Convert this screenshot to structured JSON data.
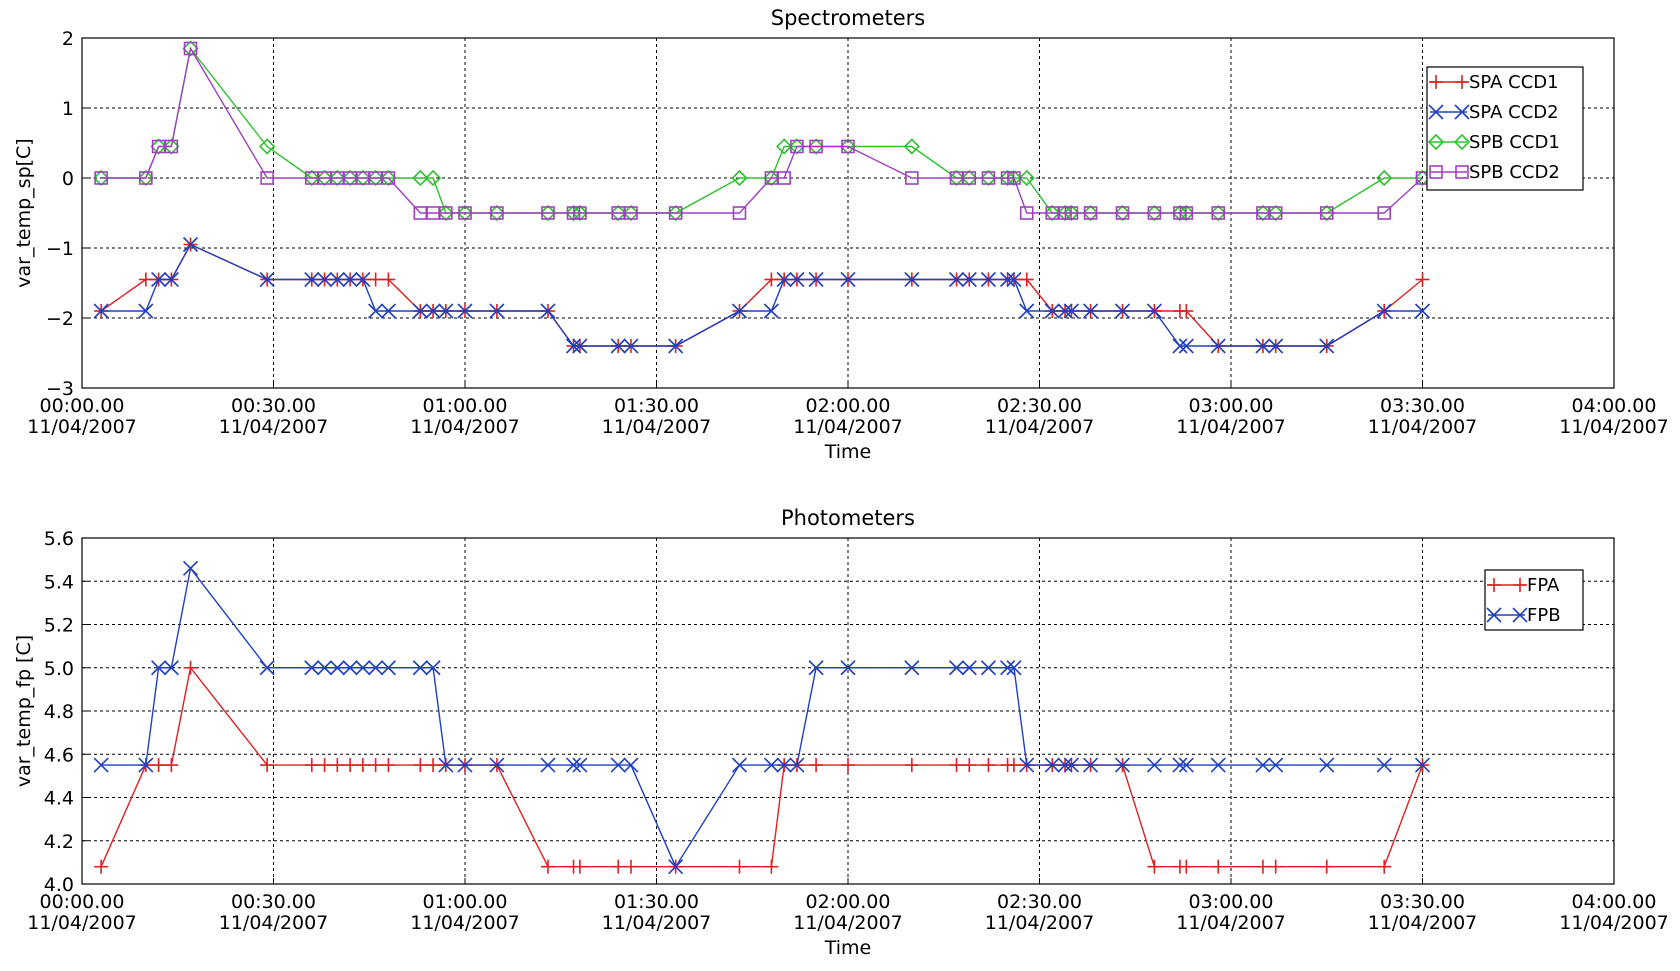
{
  "chart_data": [
    {
      "type": "line",
      "title": "Spectrometers",
      "xlabel": "Time",
      "ylabel": "var_temp_sp[C]",
      "xlim": [
        "2007-04-11 00:00:00",
        "2007-04-11 04:00:00"
      ],
      "ylim": [
        -3,
        2
      ],
      "x_tick_labels": [
        [
          "00:00.00",
          "11/04/2007"
        ],
        [
          "00:30.00",
          "11/04/2007"
        ],
        [
          "01:00.00",
          "11/04/2007"
        ],
        [
          "01:30.00",
          "11/04/2007"
        ],
        [
          "02:00.00",
          "11/04/2007"
        ],
        [
          "02:30.00",
          "11/04/2007"
        ],
        [
          "03:00.00",
          "11/04/2007"
        ],
        [
          "03:30.00",
          "11/04/2007"
        ],
        [
          "04:00.00",
          "11/04/2007"
        ]
      ],
      "y_ticks": [
        -3,
        -2,
        -1,
        0,
        1,
        2
      ],
      "y_tick_labels": [
        "−3",
        "−2",
        "−1",
        "0",
        "1",
        "2"
      ],
      "grid": true,
      "legend_position": "top-right",
      "series": [
        {
          "name": "SPA CCD1",
          "color": "#dd2020",
          "marker": "plus",
          "x": [
            "00:03",
            "00:10",
            "00:12",
            "00:14",
            "00:17",
            "00:29",
            "00:36",
            "00:38",
            "00:40",
            "00:42",
            "00:44",
            "00:46",
            "00:48",
            "00:53",
            "00:55",
            "00:57",
            "01:00",
            "01:05",
            "01:13",
            "01:17",
            "01:18",
            "01:24",
            "01:26",
            "01:33",
            "01:43",
            "01:48",
            "01:50",
            "01:52",
            "01:55",
            "02:00",
            "02:10",
            "02:17",
            "02:19",
            "02:22",
            "02:25",
            "02:26",
            "02:28",
            "02:32",
            "02:34",
            "02:35",
            "02:38",
            "02:43",
            "02:48",
            "02:52",
            "02:53",
            "02:58",
            "03:05",
            "03:07",
            "03:15",
            "03:24",
            "03:30"
          ],
          "values": [
            -1.9,
            -1.45,
            -1.45,
            -1.45,
            -0.95,
            -1.45,
            -1.45,
            -1.45,
            -1.45,
            -1.45,
            -1.45,
            -1.45,
            -1.45,
            -1.9,
            -1.9,
            -1.9,
            -1.9,
            -1.9,
            -1.9,
            -2.4,
            -2.4,
            -2.4,
            -2.4,
            -2.4,
            -1.9,
            -1.45,
            -1.45,
            -1.45,
            -1.45,
            -1.45,
            -1.45,
            -1.45,
            -1.45,
            -1.45,
            -1.45,
            -1.45,
            -1.45,
            -1.9,
            -1.9,
            -1.9,
            -1.9,
            -1.9,
            -1.9,
            -1.9,
            -1.9,
            -2.4,
            -2.4,
            -2.4,
            -2.4,
            -1.9,
            -1.45
          ]
        },
        {
          "name": "SPA CCD2",
          "color": "#2040c0",
          "marker": "x",
          "x": [
            "00:03",
            "00:10",
            "00:12",
            "00:14",
            "00:17",
            "00:29",
            "00:36",
            "00:38",
            "00:40",
            "00:42",
            "00:44",
            "00:46",
            "00:48",
            "00:53",
            "00:55",
            "00:57",
            "01:00",
            "01:05",
            "01:13",
            "01:17",
            "01:18",
            "01:24",
            "01:26",
            "01:33",
            "01:43",
            "01:48",
            "01:50",
            "01:52",
            "01:55",
            "02:00",
            "02:10",
            "02:17",
            "02:19",
            "02:22",
            "02:25",
            "02:26",
            "02:28",
            "02:32",
            "02:34",
            "02:35",
            "02:38",
            "02:43",
            "02:48",
            "02:52",
            "02:53",
            "02:58",
            "03:05",
            "03:07",
            "03:15",
            "03:24",
            "03:30"
          ],
          "values": [
            -1.9,
            -1.9,
            -1.45,
            -1.45,
            -0.95,
            -1.45,
            -1.45,
            -1.45,
            -1.45,
            -1.45,
            -1.45,
            -1.9,
            -1.9,
            -1.9,
            -1.9,
            -1.9,
            -1.9,
            -1.9,
            -1.9,
            -2.4,
            -2.4,
            -2.4,
            -2.4,
            -2.4,
            -1.9,
            -1.9,
            -1.45,
            -1.45,
            -1.45,
            -1.45,
            -1.45,
            -1.45,
            -1.45,
            -1.45,
            -1.45,
            -1.45,
            -1.9,
            -1.9,
            -1.9,
            -1.9,
            -1.9,
            -1.9,
            -1.9,
            -2.4,
            -2.4,
            -2.4,
            -2.4,
            -2.4,
            -2.4,
            -1.9,
            -1.9
          ]
        },
        {
          "name": "SPB CCD1",
          "color": "#30c030",
          "marker": "diamond",
          "x": [
            "00:03",
            "00:10",
            "00:12",
            "00:14",
            "00:17",
            "00:29",
            "00:36",
            "00:38",
            "00:40",
            "00:42",
            "00:44",
            "00:46",
            "00:48",
            "00:53",
            "00:55",
            "00:57",
            "01:00",
            "01:05",
            "01:13",
            "01:17",
            "01:18",
            "01:24",
            "01:26",
            "01:33",
            "01:43",
            "01:48",
            "01:50",
            "01:52",
            "01:55",
            "02:00",
            "02:10",
            "02:17",
            "02:19",
            "02:22",
            "02:25",
            "02:26",
            "02:28",
            "02:32",
            "02:34",
            "02:35",
            "02:38",
            "02:43",
            "02:48",
            "02:52",
            "02:53",
            "02:58",
            "03:05",
            "03:07",
            "03:15",
            "03:24",
            "03:30"
          ],
          "values": [
            0,
            0,
            0.45,
            0.45,
            1.85,
            0.45,
            0,
            0,
            0,
            0,
            0,
            0,
            0,
            0,
            0,
            -0.5,
            -0.5,
            -0.5,
            -0.5,
            -0.5,
            -0.5,
            -0.5,
            -0.5,
            -0.5,
            0,
            0,
            0.45,
            0.45,
            0.45,
            0.45,
            0.45,
            0,
            0,
            0,
            0,
            0,
            0,
            -0.5,
            -0.5,
            -0.5,
            -0.5,
            -0.5,
            -0.5,
            -0.5,
            -0.5,
            -0.5,
            -0.5,
            -0.5,
            -0.5,
            0,
            0
          ]
        },
        {
          "name": "SPB CCD2",
          "color": "#a040c0",
          "marker": "square",
          "x": [
            "00:03",
            "00:10",
            "00:12",
            "00:14",
            "00:17",
            "00:29",
            "00:36",
            "00:38",
            "00:40",
            "00:42",
            "00:44",
            "00:46",
            "00:48",
            "00:53",
            "00:55",
            "00:57",
            "01:00",
            "01:05",
            "01:13",
            "01:17",
            "01:18",
            "01:24",
            "01:26",
            "01:33",
            "01:43",
            "01:48",
            "01:50",
            "01:52",
            "01:55",
            "02:00",
            "02:10",
            "02:17",
            "02:19",
            "02:22",
            "02:25",
            "02:26",
            "02:28",
            "02:32",
            "02:34",
            "02:35",
            "02:38",
            "02:43",
            "02:48",
            "02:52",
            "02:53",
            "02:58",
            "03:05",
            "03:07",
            "03:15",
            "03:24",
            "03:30"
          ],
          "values": [
            0,
            0,
            0.45,
            0.45,
            1.85,
            0,
            0,
            0,
            0,
            0,
            0,
            0,
            0,
            -0.5,
            -0.5,
            -0.5,
            -0.5,
            -0.5,
            -0.5,
            -0.5,
            -0.5,
            -0.5,
            -0.5,
            -0.5,
            -0.5,
            0,
            0,
            0.45,
            0.45,
            0.45,
            0,
            0,
            0,
            0,
            0,
            0,
            -0.5,
            -0.5,
            -0.5,
            -0.5,
            -0.5,
            -0.5,
            -0.5,
            -0.5,
            -0.5,
            -0.5,
            -0.5,
            -0.5,
            -0.5,
            -0.5,
            0
          ]
        }
      ]
    },
    {
      "type": "line",
      "title": "Photometers",
      "xlabel": "Time",
      "ylabel": "var_temp_fp [C]",
      "xlim": [
        "2007-04-11 00:00:00",
        "2007-04-11 04:00:00"
      ],
      "ylim": [
        4.0,
        5.6
      ],
      "x_tick_labels": [
        [
          "00:00.00",
          "11/04/2007"
        ],
        [
          "00:30.00",
          "11/04/2007"
        ],
        [
          "01:00.00",
          "11/04/2007"
        ],
        [
          "01:30.00",
          "11/04/2007"
        ],
        [
          "02:00.00",
          "11/04/2007"
        ],
        [
          "02:30.00",
          "11/04/2007"
        ],
        [
          "03:00.00",
          "11/04/2007"
        ],
        [
          "03:30.00",
          "11/04/2007"
        ],
        [
          "04:00.00",
          "11/04/2007"
        ]
      ],
      "y_ticks": [
        4.0,
        4.2,
        4.4,
        4.6,
        4.8,
        5.0,
        5.2,
        5.4,
        5.6
      ],
      "y_tick_labels": [
        "4.0",
        "4.2",
        "4.4",
        "4.6",
        "4.8",
        "5.0",
        "5.2",
        "5.4",
        "5.6"
      ],
      "grid": true,
      "legend_position": "top-right",
      "series": [
        {
          "name": "FPA",
          "color": "#dd2020",
          "marker": "plus",
          "x": [
            "00:03",
            "00:10",
            "00:12",
            "00:14",
            "00:17",
            "00:29",
            "00:36",
            "00:38",
            "00:40",
            "00:42",
            "00:44",
            "00:46",
            "00:48",
            "00:53",
            "00:55",
            "00:57",
            "01:00",
            "01:05",
            "01:13",
            "01:17",
            "01:18",
            "01:24",
            "01:26",
            "01:33",
            "01:43",
            "01:48",
            "01:50",
            "01:52",
            "01:55",
            "02:00",
            "02:10",
            "02:17",
            "02:19",
            "02:22",
            "02:25",
            "02:26",
            "02:28",
            "02:32",
            "02:34",
            "02:35",
            "02:38",
            "02:43",
            "02:48",
            "02:52",
            "02:53",
            "02:58",
            "03:05",
            "03:07",
            "03:15",
            "03:24",
            "03:30"
          ],
          "values": [
            4.08,
            4.55,
            4.55,
            4.55,
            5.0,
            4.55,
            4.55,
            4.55,
            4.55,
            4.55,
            4.55,
            4.55,
            4.55,
            4.55,
            4.55,
            4.55,
            4.55,
            4.55,
            4.08,
            4.08,
            4.08,
            4.08,
            4.08,
            4.08,
            4.08,
            4.08,
            4.55,
            4.55,
            4.55,
            4.55,
            4.55,
            4.55,
            4.55,
            4.55,
            4.55,
            4.55,
            4.55,
            4.55,
            4.55,
            4.55,
            4.55,
            4.55,
            4.08,
            4.08,
            4.08,
            4.08,
            4.08,
            4.08,
            4.08,
            4.08,
            4.55
          ]
        },
        {
          "name": "FPB",
          "color": "#2040c0",
          "marker": "x",
          "x": [
            "00:03",
            "00:10",
            "00:12",
            "00:14",
            "00:17",
            "00:29",
            "00:36",
            "00:38",
            "00:40",
            "00:42",
            "00:44",
            "00:46",
            "00:48",
            "00:53",
            "00:55",
            "00:57",
            "01:00",
            "01:05",
            "01:13",
            "01:17",
            "01:18",
            "01:24",
            "01:26",
            "01:33",
            "01:43",
            "01:48",
            "01:50",
            "01:52",
            "01:55",
            "02:00",
            "02:10",
            "02:17",
            "02:19",
            "02:22",
            "02:25",
            "02:26",
            "02:28",
            "02:32",
            "02:34",
            "02:35",
            "02:38",
            "02:43",
            "02:48",
            "02:52",
            "02:53",
            "02:58",
            "03:05",
            "03:07",
            "03:15",
            "03:24",
            "03:30"
          ],
          "values": [
            4.55,
            4.55,
            5.0,
            5.0,
            5.46,
            5.0,
            5.0,
            5.0,
            5.0,
            5.0,
            5.0,
            5.0,
            5.0,
            5.0,
            5.0,
            4.55,
            4.55,
            4.55,
            4.55,
            4.55,
            4.55,
            4.55,
            4.55,
            4.08,
            4.55,
            4.55,
            4.55,
            4.55,
            5.0,
            5.0,
            5.0,
            5.0,
            5.0,
            5.0,
            5.0,
            5.0,
            4.55,
            4.55,
            4.55,
            4.55,
            4.55,
            4.55,
            4.55,
            4.55,
            4.55,
            4.55,
            4.55,
            4.55,
            4.55,
            4.55,
            4.55
          ]
        }
      ]
    }
  ]
}
